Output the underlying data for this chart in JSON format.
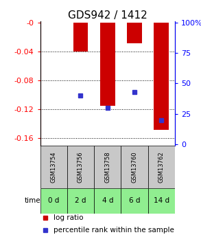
{
  "title": "GDS942 / 1412",
  "categories": [
    "GSM13754",
    "GSM13756",
    "GSM13758",
    "GSM13760",
    "GSM13762"
  ],
  "time_labels": [
    "0 d",
    "2 d",
    "4 d",
    "6 d",
    "14 d"
  ],
  "log_ratios": [
    0.0,
    -0.04,
    -0.115,
    -0.028,
    -0.148
  ],
  "percentile_ranks": [
    null,
    40,
    30,
    43,
    20
  ],
  "bar_color": "#cc0000",
  "percentile_color": "#3333cc",
  "ylim_left": [
    -0.17,
    0.002
  ],
  "ylim_right": [
    -1.0,
    101.0
  ],
  "yticks_left": [
    0.0,
    -0.04,
    -0.08,
    -0.12,
    -0.16
  ],
  "ytick_labels_left": [
    "-0",
    "-0.04",
    "-0.08",
    "-0.12",
    "-0.16"
  ],
  "yticks_right": [
    0,
    25,
    50,
    75,
    100
  ],
  "ytick_labels_right": [
    "0",
    "25",
    "50",
    "75",
    "100%"
  ],
  "grid_yticks": [
    -0.04,
    -0.08,
    -0.12,
    -0.16
  ],
  "cell_bg_gray": "#c8c8c8",
  "cell_bg_green": "#90ee90",
  "bar_width": 0.55,
  "title_fontsize": 11,
  "tick_fontsize": 8,
  "legend_fontsize": 7.5
}
